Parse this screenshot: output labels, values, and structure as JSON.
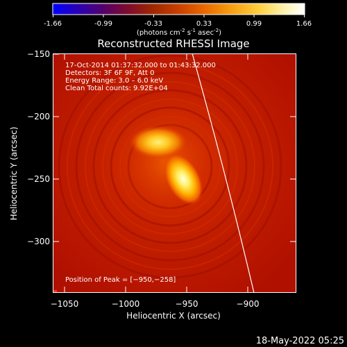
{
  "colorbar": {
    "ticks": [
      "-1.66",
      "-0.99",
      "-0.33",
      "0.33",
      "0.99",
      "1.66"
    ],
    "units": "(photons cm",
    "units_exp1": "-2",
    "units_mid": " s",
    "units_exp2": "-1",
    "units_end": " asec",
    "units_exp3": "-2",
    "units_close": ")",
    "stops": [
      "#0000ff",
      "#2a00b4",
      "#55006a",
      "#7f0c2c",
      "#a02800",
      "#c94000",
      "#e86800",
      "#f59a10",
      "#ffd040",
      "#fff4b0",
      "#ffffff"
    ]
  },
  "plot": {
    "title": "Reconstructed RHESSI Image",
    "xlabel": "Heliocentric X (arcsec)",
    "ylabel": "Heliocentric Y (arcsec)",
    "xticks": [
      "−1050",
      "−1000",
      "−950",
      "−900"
    ],
    "yticks": [
      "−150",
      "−200",
      "−250",
      "−300"
    ],
    "info_line1": "17-Oct-2014 01:37:32.000 to 01:43:32.000",
    "info_line2": "Detectors: 3F 6F 9F, Att 0",
    "info_line3": "Energy Range: 3.0 – 6.0 keV",
    "info_line4": "Clean    Total counts: 9.92E+04",
    "peak": "Position of Peak = [−950,−258]",
    "limb_color": "#ffffff",
    "background_color": "#b81400"
  },
  "footer": {
    "date": "18-May-2022 05:25"
  }
}
